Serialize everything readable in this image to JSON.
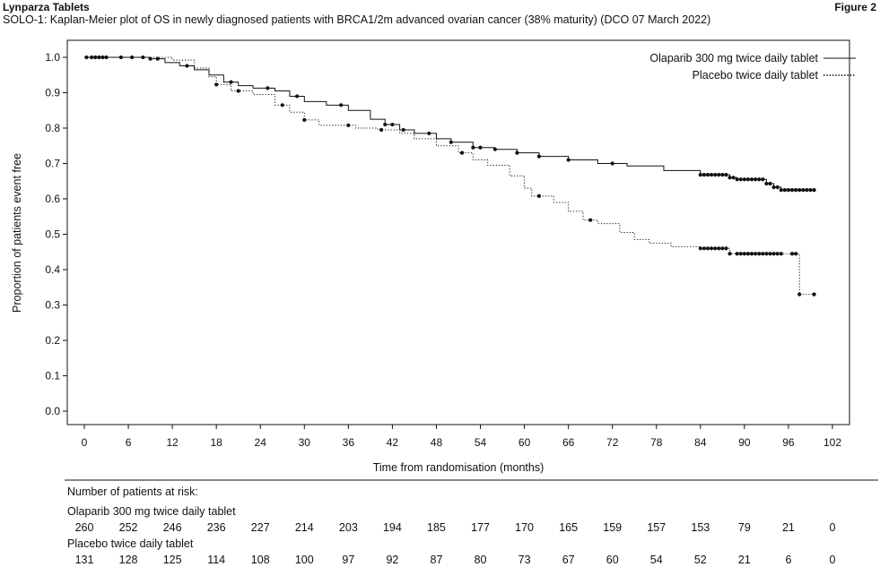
{
  "header": {
    "product": "Lynparza Tablets",
    "figure": "Figure 2",
    "subtitle": "SOLO-1: Kaplan-Meier plot of OS in newly diagnosed patients with BRCA1/2m advanced ovarian cancer (38% maturity) (DCO 07 March 2022)"
  },
  "chart_data": {
    "type": "line",
    "title": "SOLO-1: Kaplan-Meier plot of OS in newly diagnosed patients with BRCA1/2m advanced ovarian cancer (38% maturity) (DCO 07 March 2022)",
    "xlabel": "Time from randomisation (months)",
    "ylabel": "Proportion of patients event free",
    "xlim": [
      0,
      102
    ],
    "ylim": [
      0,
      1
    ],
    "x_ticks": [
      0,
      6,
      12,
      18,
      24,
      30,
      36,
      42,
      48,
      54,
      60,
      66,
      72,
      78,
      84,
      90,
      96,
      102
    ],
    "y_ticks": [
      0.0,
      0.1,
      0.2,
      0.3,
      0.4,
      0.5,
      0.6,
      0.7,
      0.8,
      0.9,
      1.0
    ],
    "y_tick_labels": [
      "0.0",
      "0.1",
      "0.2",
      "0.3",
      "0.4",
      "0.5",
      "0.6",
      "0.7",
      "0.8",
      "0.9",
      "1.0"
    ],
    "legend_position": "top-right",
    "grid": false,
    "series": [
      {
        "name": "Olaparib 300 mg twice daily tablet",
        "line_style": "solid",
        "color": "#111111",
        "steps": [
          [
            0,
            1.0
          ],
          [
            9,
            0.996
          ],
          [
            11,
            0.985
          ],
          [
            13,
            0.976
          ],
          [
            15,
            0.965
          ],
          [
            17,
            0.95
          ],
          [
            19,
            0.93
          ],
          [
            21,
            0.92
          ],
          [
            23,
            0.913
          ],
          [
            26,
            0.905
          ],
          [
            28,
            0.89
          ],
          [
            30,
            0.875
          ],
          [
            33,
            0.865
          ],
          [
            36,
            0.85
          ],
          [
            39,
            0.825
          ],
          [
            41,
            0.81
          ],
          [
            43,
            0.795
          ],
          [
            45,
            0.785
          ],
          [
            48,
            0.77
          ],
          [
            50,
            0.76
          ],
          [
            53,
            0.745
          ],
          [
            56,
            0.74
          ],
          [
            59,
            0.73
          ],
          [
            62,
            0.72
          ],
          [
            66,
            0.71
          ],
          [
            70,
            0.7
          ],
          [
            74,
            0.693
          ],
          [
            79,
            0.68
          ],
          [
            84,
            0.668
          ],
          [
            88,
            0.66
          ],
          [
            89,
            0.655
          ],
          [
            93,
            0.643
          ],
          [
            94,
            0.633
          ],
          [
            95,
            0.625
          ],
          [
            99.5,
            0.625
          ]
        ],
        "censor_x": [
          0.3,
          1,
          1.5,
          2,
          2.5,
          3,
          5,
          6.5,
          8,
          9,
          10,
          14,
          20,
          25,
          29,
          35,
          41,
          42,
          43.5,
          47,
          50,
          53,
          54,
          56,
          59,
          62,
          66,
          72,
          84,
          84.5,
          85,
          85.5,
          86,
          86.5,
          87,
          87.5,
          88,
          88.5,
          89,
          89.5,
          90,
          90.5,
          91,
          91.5,
          92,
          92.5,
          93,
          93.5,
          94,
          94.5,
          95,
          95.5,
          96,
          96.5,
          97,
          97.5,
          98,
          98.5,
          99,
          99.5
        ]
      },
      {
        "name": "Placebo twice daily tablet",
        "line_style": "dotted",
        "color": "#111111",
        "steps": [
          [
            0,
            1.0
          ],
          [
            12,
            0.992
          ],
          [
            15,
            0.97
          ],
          [
            17,
            0.945
          ],
          [
            18,
            0.923
          ],
          [
            20,
            0.905
          ],
          [
            23,
            0.895
          ],
          [
            26,
            0.865
          ],
          [
            28,
            0.845
          ],
          [
            30,
            0.823
          ],
          [
            32,
            0.808
          ],
          [
            37,
            0.8
          ],
          [
            40,
            0.795
          ],
          [
            43,
            0.785
          ],
          [
            45,
            0.77
          ],
          [
            48,
            0.75
          ],
          [
            51,
            0.73
          ],
          [
            53,
            0.71
          ],
          [
            55,
            0.695
          ],
          [
            58,
            0.665
          ],
          [
            60,
            0.63
          ],
          [
            61,
            0.608
          ],
          [
            64,
            0.59
          ],
          [
            66,
            0.565
          ],
          [
            68,
            0.54
          ],
          [
            70,
            0.53
          ],
          [
            73,
            0.505
          ],
          [
            75,
            0.485
          ],
          [
            77,
            0.475
          ],
          [
            80,
            0.465
          ],
          [
            84,
            0.46
          ],
          [
            88,
            0.445
          ],
          [
            97.5,
            0.445
          ],
          [
            97.5,
            0.33
          ],
          [
            99.5,
            0.33
          ]
        ],
        "censor_x": [
          18,
          21,
          27,
          30,
          36,
          40.5,
          51.5,
          62,
          69,
          84,
          84.5,
          85,
          85.5,
          86,
          86.5,
          87,
          87.5,
          88,
          89,
          89.5,
          90,
          90.5,
          91,
          91.5,
          92,
          92.5,
          93,
          93.5,
          94,
          94.5,
          95,
          96.5,
          97,
          97.5,
          99.5
        ]
      }
    ],
    "risk_table": {
      "title": "Number of patients at risk:",
      "x": [
        0,
        6,
        12,
        18,
        24,
        30,
        36,
        42,
        48,
        54,
        60,
        66,
        72,
        78,
        84,
        90,
        96,
        102
      ],
      "rows": [
        {
          "label": "Olaparib 300 mg twice daily tablet",
          "values": [
            "260",
            "252",
            "246",
            "236",
            "227",
            "214",
            "203",
            "194",
            "185",
            "177",
            "170",
            "165",
            "159",
            "157",
            "153",
            "79",
            "21",
            "0"
          ]
        },
        {
          "label": "Placebo twice daily tablet",
          "values": [
            "131",
            "128",
            "125",
            "114",
            "108",
            "100",
            "97",
            "92",
            "87",
            "80",
            "73",
            "67",
            "60",
            "54",
            "52",
            "21",
            "6",
            "0"
          ]
        }
      ]
    }
  }
}
